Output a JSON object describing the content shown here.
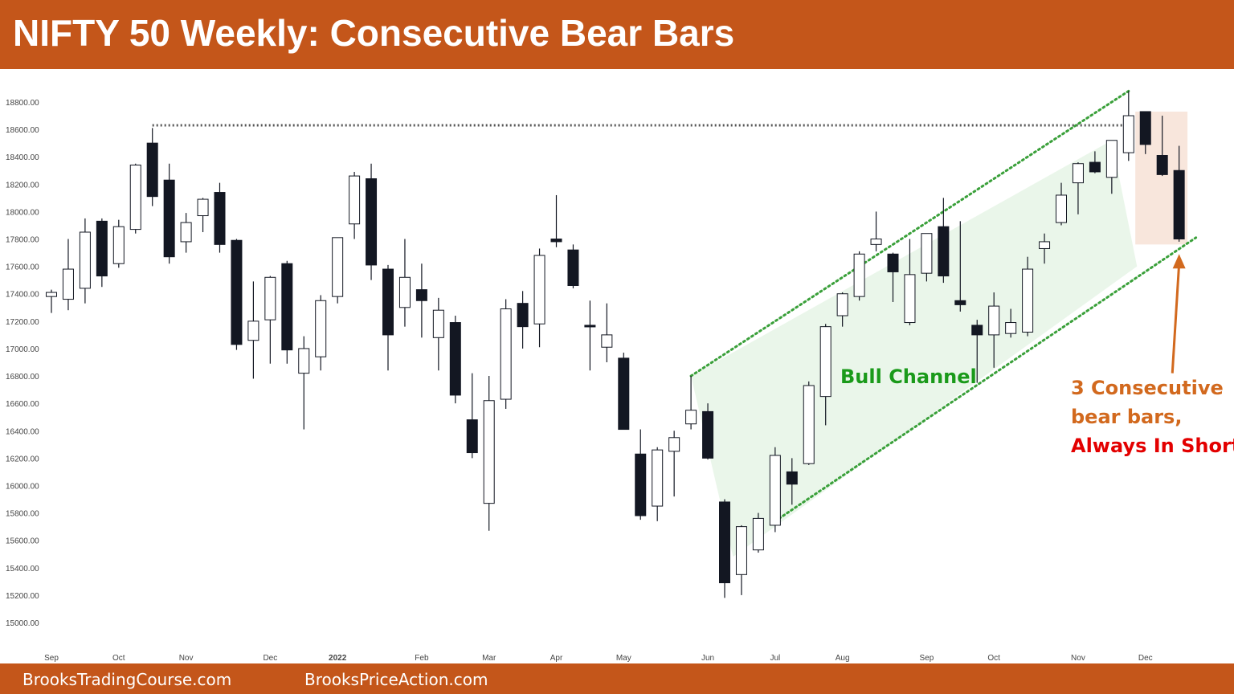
{
  "header": {
    "title": "NIFTY 50 Weekly: Consecutive Bear Bars"
  },
  "footer": {
    "link_left": "BrooksTradingCourse.com",
    "link_right": "BrooksPriceAction.com"
  },
  "colors": {
    "brand": "#c4561a",
    "bull_channel": "#1a9a1a",
    "annotation_orange": "#d2691e",
    "annotation_red": "#e30000",
    "bear_candle": "#131722",
    "bull_candle": "#ffffff",
    "channel_fill": "#e6f5e6",
    "highlight_fill": "#f8e6dc"
  },
  "chart_data": {
    "type": "candlestick",
    "title": "NIFTY 50 Weekly: Consecutive Bear Bars",
    "ylim": [
      14850,
      18950
    ],
    "yticks": [
      "15000.00",
      "15200.00",
      "15400.00",
      "15600.00",
      "15800.00",
      "16000.00",
      "16200.00",
      "16400.00",
      "16600.00",
      "16800.00",
      "17000.00",
      "17200.00",
      "17400.00",
      "17600.00",
      "17800.00",
      "18000.00",
      "18200.00",
      "18400.00",
      "18600.00",
      "18800.00"
    ],
    "xticks": [
      {
        "label": "Sep",
        "bar": 0,
        "bold": false
      },
      {
        "label": "Oct",
        "bar": 4,
        "bold": false
      },
      {
        "label": "Nov",
        "bar": 8,
        "bold": false
      },
      {
        "label": "Dec",
        "bar": 13,
        "bold": false
      },
      {
        "label": "2022",
        "bar": 17,
        "bold": true
      },
      {
        "label": "Feb",
        "bar": 22,
        "bold": false
      },
      {
        "label": "Mar",
        "bar": 26,
        "bold": false
      },
      {
        "label": "Apr",
        "bar": 30,
        "bold": false
      },
      {
        "label": "May",
        "bar": 34,
        "bold": false
      },
      {
        "label": "Jun",
        "bar": 39,
        "bold": false
      },
      {
        "label": "Jul",
        "bar": 43,
        "bold": false
      },
      {
        "label": "Aug",
        "bar": 47,
        "bold": false
      },
      {
        "label": "Sep",
        "bar": 52,
        "bold": false
      },
      {
        "label": "Oct",
        "bar": 56,
        "bold": false
      },
      {
        "label": "Nov",
        "bar": 61,
        "bold": false
      },
      {
        "label": "Dec",
        "bar": 65,
        "bold": false
      }
    ],
    "candles": [
      [
        17380,
        17430,
        17260,
        17410
      ],
      [
        17360,
        17800,
        17280,
        17580
      ],
      [
        17440,
        17950,
        17330,
        17850
      ],
      [
        17930,
        17950,
        17450,
        17530
      ],
      [
        17620,
        17940,
        17590,
        17890
      ],
      [
        17870,
        18350,
        17840,
        18340
      ],
      [
        18500,
        18610,
        18040,
        18110
      ],
      [
        18230,
        18350,
        17620,
        17670
      ],
      [
        17780,
        17990,
        17700,
        17920
      ],
      [
        17970,
        18100,
        17850,
        18090
      ],
      [
        18140,
        18210,
        17700,
        17760
      ],
      [
        17790,
        17800,
        16990,
        17030
      ],
      [
        17060,
        17490,
        16780,
        17200
      ],
      [
        17210,
        17530,
        16890,
        17520
      ],
      [
        17620,
        17640,
        16890,
        16990
      ],
      [
        16820,
        17090,
        16410,
        17000
      ],
      [
        16940,
        17390,
        16840,
        17350
      ],
      [
        17380,
        17800,
        17330,
        17810
      ],
      [
        17910,
        18290,
        17800,
        18260
      ],
      [
        18240,
        18350,
        17500,
        17610
      ],
      [
        17580,
        17610,
        16840,
        17100
      ],
      [
        17300,
        17800,
        17160,
        17520
      ],
      [
        17430,
        17620,
        17080,
        17350
      ],
      [
        17080,
        17370,
        16840,
        17280
      ],
      [
        17190,
        17240,
        16600,
        16660
      ],
      [
        16480,
        16820,
        16200,
        16240
      ],
      [
        15870,
        16800,
        15670,
        16620
      ],
      [
        16630,
        17360,
        16560,
        17290
      ],
      [
        17330,
        17420,
        17000,
        17160
      ],
      [
        17180,
        17730,
        17010,
        17680
      ],
      [
        17800,
        18120,
        17740,
        17780
      ],
      [
        17720,
        17760,
        17440,
        17460
      ],
      [
        17170,
        17350,
        16840,
        17160
      ],
      [
        17010,
        17330,
        16900,
        17100
      ],
      [
        16930,
        16970,
        16410,
        16410
      ],
      [
        16230,
        16410,
        15750,
        15780
      ],
      [
        15850,
        16280,
        15740,
        16260
      ],
      [
        16250,
        16400,
        15920,
        16350
      ],
      [
        16450,
        16800,
        16410,
        16550
      ],
      [
        16540,
        16600,
        16190,
        16200
      ],
      [
        15880,
        15900,
        15180,
        15290
      ],
      [
        15350,
        15710,
        15200,
        15700
      ],
      [
        15530,
        15800,
        15510,
        15760
      ],
      [
        15710,
        16280,
        15660,
        16220
      ],
      [
        16100,
        16200,
        15860,
        16010
      ],
      [
        16160,
        16760,
        16150,
        16730
      ],
      [
        16650,
        17180,
        16440,
        17160
      ],
      [
        17240,
        17410,
        17160,
        17400
      ],
      [
        17380,
        17710,
        17350,
        17690
      ],
      [
        17760,
        18000,
        17710,
        17800
      ],
      [
        17690,
        17700,
        17340,
        17560
      ],
      [
        17190,
        17800,
        17170,
        17540
      ],
      [
        17550,
        17830,
        17490,
        17840
      ],
      [
        17890,
        18100,
        17480,
        17530
      ],
      [
        17350,
        17930,
        17270,
        17320
      ],
      [
        17170,
        17210,
        16750,
        17100
      ],
      [
        17100,
        17410,
        16860,
        17310
      ],
      [
        17110,
        17290,
        17080,
        17190
      ],
      [
        17120,
        17670,
        17090,
        17580
      ],
      [
        17730,
        17840,
        17620,
        17780
      ],
      [
        17920,
        18210,
        17900,
        18120
      ],
      [
        18210,
        18360,
        17980,
        18350
      ],
      [
        18360,
        18440,
        18280,
        18290
      ],
      [
        18250,
        18520,
        18130,
        18520
      ],
      [
        18430,
        18880,
        18370,
        18700
      ],
      [
        18730,
        18700,
        18420,
        18490
      ],
      [
        18410,
        18700,
        18260,
        18270
      ],
      [
        18300,
        18480,
        17780,
        17800
      ]
    ],
    "resistance_line": {
      "style": "dotted",
      "y": 18630,
      "from_bar": 6,
      "to_bar": 64
    },
    "channel_upper": {
      "style": "dotted",
      "points": [
        [
          38,
          16800
        ],
        [
          64,
          18880
        ]
      ]
    },
    "channel_lower": {
      "style": "dotted",
      "points": [
        [
          43,
          15740
        ],
        [
          68,
          17810
        ]
      ]
    },
    "shaded_channel": [
      [
        38,
        16800
      ],
      [
        63,
        18520
      ],
      [
        64.5,
        17600
      ],
      [
        40.5,
        15480
      ]
    ],
    "highlight_box": {
      "from_bar": 64.4,
      "to_bar": 67.5,
      "top": 18730,
      "bottom": 17760
    },
    "annotations": {
      "bull_channel": "Bull Channel",
      "note_line1": "3 Consecutive",
      "note_line2": "bear bars,",
      "note_line3": "Always In Short"
    },
    "arrow": {
      "from": [
        66.6,
        16820
      ],
      "to": [
        67.0,
        17690
      ]
    }
  }
}
